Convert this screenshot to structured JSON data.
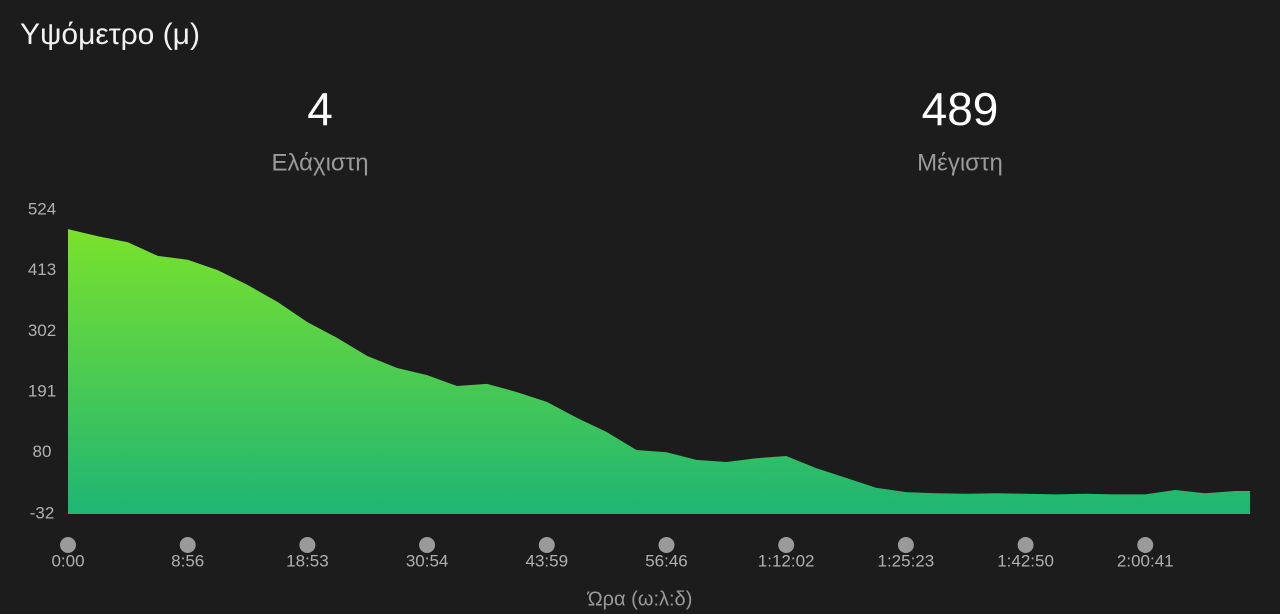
{
  "chart_data": {
    "type": "area",
    "title": "Υψόμετρο (μ)",
    "stats": [
      {
        "value": 4,
        "label": "Ελάχιστη"
      },
      {
        "value": 489,
        "label": "Μέγιστη"
      }
    ],
    "x_label": "Ώρα (ω:λ:δ)",
    "x": [
      0,
      0.25,
      0.5,
      0.75,
      1,
      1.25,
      1.5,
      1.75,
      2,
      2.25,
      2.5,
      2.75,
      3,
      3.25,
      3.5,
      3.75,
      4,
      4.25,
      4.5,
      4.75,
      5,
      5.25,
      5.5,
      5.75,
      6,
      6.25,
      6.5,
      6.75,
      7,
      7.25,
      7.5,
      7.75,
      8,
      8.25,
      8.5,
      8.75,
      9,
      9.25,
      9.5,
      9.75,
      9.875
    ],
    "values": [
      489,
      476,
      465,
      440,
      433,
      414,
      387,
      356,
      319,
      290,
      257,
      235,
      222,
      202,
      206,
      191,
      173,
      144,
      118,
      85,
      81,
      67,
      63,
      70,
      74,
      52,
      34,
      16,
      8,
      6,
      5,
      6,
      5,
      4,
      5,
      4,
      4,
      12,
      6,
      10,
      10
    ],
    "color_top": "#7ae22c",
    "color_bottom": "#1eb574",
    "xlim": [
      0,
      9.875
    ],
    "xticks": [
      {
        "value": 0,
        "label": "0:00"
      },
      {
        "value": 1,
        "label": "8:56"
      },
      {
        "value": 2,
        "label": "18:53"
      },
      {
        "value": 3,
        "label": "30:54"
      },
      {
        "value": 4,
        "label": "43:59"
      },
      {
        "value": 5,
        "label": "56:46"
      },
      {
        "value": 6,
        "label": "1:12:02"
      },
      {
        "value": 7,
        "label": "1:25:23"
      },
      {
        "value": 8,
        "label": "1:42:50"
      },
      {
        "value": 9,
        "label": "2:00:41"
      }
    ],
    "ylim": [
      -32,
      524
    ],
    "yticks": [
      -32,
      80,
      191,
      302,
      413,
      524
    ]
  }
}
